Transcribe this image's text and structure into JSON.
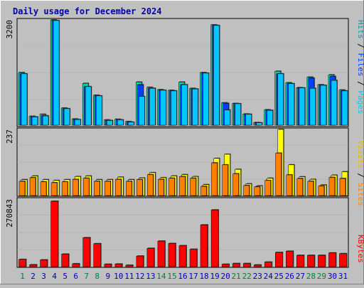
{
  "chart_data": {
    "type": "bar",
    "title": "Daily usage for December 2024",
    "categories": [
      "1",
      "2",
      "3",
      "4",
      "5",
      "6",
      "7",
      "8",
      "9",
      "10",
      "11",
      "12",
      "13",
      "14",
      "15",
      "16",
      "17",
      "18",
      "19",
      "20",
      "21",
      "22",
      "23",
      "24",
      "25",
      "26",
      "27",
      "28",
      "29",
      "30",
      "31"
    ],
    "weekend_days": [
      "1",
      "7",
      "8",
      "14",
      "15",
      "21",
      "22",
      "28",
      "29"
    ],
    "panels": [
      {
        "id": "hits",
        "max_label": "3200",
        "ymax": 3200,
        "series": [
          {
            "name": "Pages",
            "color": "#00c8ff",
            "values": [
              0,
              0,
              0,
              0,
              0,
              0,
              0,
              0,
              0,
              0,
              0,
              0,
              0,
              0,
              0,
              0,
              0,
              0,
              0,
              0,
              0,
              0,
              0,
              0,
              0,
              0,
              0,
              0,
              0,
              0,
              0
            ]
          },
          {
            "name": "Files",
            "color": "#0040ff",
            "values": [
              0,
              0,
              0,
              0,
              0,
              0,
              0,
              0,
              0,
              0,
              0,
              0,
              0,
              0,
              0,
              0,
              0,
              0,
              0,
              0,
              0,
              0,
              0,
              0,
              0,
              0,
              0,
              0,
              0,
              0,
              0
            ]
          },
          {
            "name": "Hits",
            "color": "#00c8ff",
            "values": [
              0,
              0,
              0,
              0,
              0,
              0,
              0,
              0,
              0,
              0,
              0,
              0,
              0,
              0,
              0,
              0,
              0,
              0,
              0,
              0,
              0,
              0,
              0,
              0,
              0,
              0,
              0,
              0,
              0,
              0,
              0
            ]
          }
        ],
        "hits": [
          1600,
          270,
          330,
          3200,
          520,
          190,
          1270,
          910,
          160,
          180,
          110,
          1310,
          1150,
          1080,
          1060,
          1310,
          1120,
          1600,
          3050,
          680,
          660,
          340,
          80,
          470,
          1640,
          1290,
          1140,
          1460,
          1230,
          1530,
          1070
        ],
        "files": [
          1560,
          250,
          290,
          3180,
          500,
          170,
          1170,
          890,
          140,
          160,
          90,
          1230,
          1120,
          1060,
          1040,
          1230,
          1100,
          1580,
          3030,
          660,
          650,
          330,
          70,
          450,
          1560,
          1260,
          1130,
          1430,
          1210,
          1480,
          1040
        ],
        "pages": [
          1560,
          250,
          280,
          3180,
          500,
          170,
          1170,
          890,
          140,
          160,
          90,
          870,
          1120,
          1060,
          1040,
          1230,
          1100,
          1580,
          3030,
          460,
          650,
          330,
          70,
          450,
          1560,
          1260,
          1130,
          1120,
          1210,
          1360,
          1040
        ]
      },
      {
        "id": "visits",
        "max_label": "237",
        "ymax": 237,
        "series": [
          {
            "name": "Sites",
            "color": "#ff8000",
            "values": [
              0,
              0,
              0,
              0,
              0,
              0,
              0,
              0,
              0,
              0,
              0,
              0,
              0,
              0,
              0,
              0,
              0,
              0,
              0,
              0,
              0,
              0,
              0,
              0,
              0,
              0,
              0,
              0,
              0,
              0,
              0
            ]
          },
          {
            "name": "Visits",
            "color": "#ffff00",
            "values": [
              0,
              0,
              0,
              0,
              0,
              0,
              0,
              0,
              0,
              0,
              0,
              0,
              0,
              0,
              0,
              0,
              0,
              0,
              0,
              0,
              0,
              0,
              0,
              0,
              0,
              0,
              0,
              0,
              0,
              0,
              0
            ]
          }
        ],
        "visits": [
          57,
          70,
          57,
          54,
          57,
          68,
          70,
          57,
          57,
          66,
          57,
          63,
          82,
          64,
          70,
          75,
          68,
          39,
          133,
          148,
          94,
          42,
          35,
          62,
          237,
          110,
          67,
          58,
          38,
          73,
          85
        ],
        "sites": [
          51,
          64,
          49,
          46,
          49,
          58,
          62,
          51,
          51,
          58,
          51,
          57,
          75,
          58,
          62,
          68,
          62,
          33,
          117,
          110,
          78,
          36,
          31,
          54,
          152,
          74,
          61,
          51,
          34,
          65,
          61
        ]
      },
      {
        "id": "kbytes",
        "max_label": "270843",
        "ymax": 270843,
        "series": [
          {
            "name": "KBytes",
            "color": "#ff0000",
            "values": [
              0,
              0,
              0,
              0,
              0,
              0,
              0,
              0,
              0,
              0,
              0,
              0,
              0,
              0,
              0,
              0,
              0,
              0,
              0,
              0,
              0,
              0,
              0,
              0,
              0,
              0,
              0,
              0,
              0,
              0,
              0
            ]
          }
        ],
        "kbytes": [
          30000,
          8000,
          28000,
          270843,
          52000,
          12000,
          120000,
          95000,
          10000,
          11000,
          6000,
          44000,
          76000,
          106000,
          96000,
          87000,
          72000,
          173000,
          235000,
          10000,
          13000,
          13000,
          7000,
          19000,
          59000,
          64000,
          47000,
          47000,
          47000,
          57000,
          54000
        ]
      }
    ]
  },
  "labels": {
    "hits_axis": {
      "pages": "Pages",
      "files": "Files",
      "hits": "Hits",
      "sep": " / "
    },
    "visits_axis": {
      "sites": "Sites",
      "visits": "Visits",
      "sep": " / "
    },
    "kbytes_axis": {
      "kbytes": "KBytes"
    }
  },
  "colors": {
    "pages": "#00c8ff",
    "files": "#0040ff",
    "hits": "#00d4a0",
    "sites": "#ff8000",
    "visits": "#ffff00",
    "kbytes": "#ff0000",
    "weekday": "#0000b0",
    "weekend": "#008040",
    "title": "#0000b0"
  }
}
